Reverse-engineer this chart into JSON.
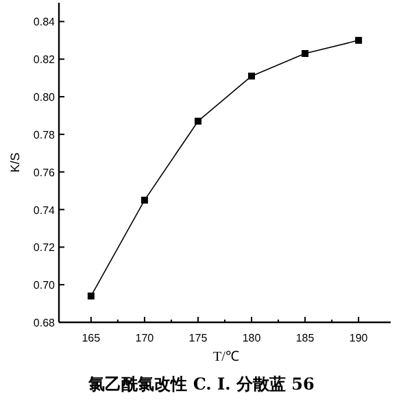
{
  "chart_data": {
    "type": "line",
    "title": "氯乙酰氯改性 C. I. 分散蓝 56",
    "xlabel": "T/℃",
    "ylabel": "K/S",
    "x": [
      165,
      170,
      175,
      180,
      185,
      190
    ],
    "series": [
      {
        "color": "#000000",
        "values": [
          0.694,
          0.745,
          0.787,
          0.811,
          0.823,
          0.83
        ]
      }
    ],
    "xlim": [
      162,
      193
    ],
    "xticks": [
      165,
      170,
      175,
      180,
      185,
      190
    ],
    "ylim": [
      0.68,
      0.85
    ],
    "yticks": [
      {
        "value": 0.68,
        "label": "0.68"
      },
      {
        "value": 0.7,
        "label": "0.70"
      },
      {
        "value": 0.72,
        "label": "0.72"
      },
      {
        "value": 0.74,
        "label": "0.74"
      },
      {
        "value": 0.76,
        "label": "0.76"
      },
      {
        "value": 0.78,
        "label": "0.78"
      },
      {
        "value": 0.8,
        "label": "0.80"
      },
      {
        "value": 0.82,
        "label": "0.82"
      },
      {
        "value": 0.84,
        "label": "0.84"
      }
    ],
    "marker": "square",
    "line_style": "solid"
  }
}
